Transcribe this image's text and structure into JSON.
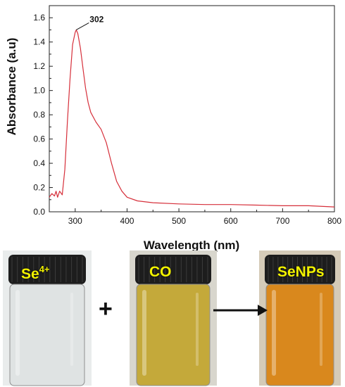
{
  "chart_data": {
    "type": "line",
    "xlabel": "Wavelength (nm)",
    "ylabel": "Absorbance (a.u)",
    "xlim": [
      250,
      800
    ],
    "ylim": [
      0,
      1.7
    ],
    "xticks": [
      300,
      400,
      500,
      600,
      700,
      800
    ],
    "yticks": [
      0.0,
      0.2,
      0.4,
      0.6,
      0.8,
      1.0,
      1.2,
      1.4,
      1.6
    ],
    "xtick_labels": [
      "300",
      "400",
      "500",
      "600",
      "700",
      "800"
    ],
    "ytick_labels": [
      "0.0",
      "0.2",
      "0.4",
      "0.6",
      "0.8",
      "1.0",
      "1.2",
      "1.4",
      "1.6"
    ],
    "grid": false,
    "series": [
      {
        "color": "#d62f3a",
        "x": [
          250,
          255,
          260,
          263,
          266,
          270,
          275,
          280,
          285,
          290,
          295,
          300,
          302,
          305,
          310,
          315,
          320,
          325,
          330,
          340,
          350,
          360,
          370,
          380,
          390,
          400,
          420,
          450,
          500,
          550,
          600,
          650,
          700,
          750,
          800
        ],
        "y": [
          0.12,
          0.15,
          0.13,
          0.17,
          0.12,
          0.17,
          0.14,
          0.35,
          0.75,
          1.1,
          1.38,
          1.48,
          1.5,
          1.47,
          1.35,
          1.18,
          1.02,
          0.9,
          0.82,
          0.74,
          0.68,
          0.57,
          0.4,
          0.25,
          0.17,
          0.12,
          0.09,
          0.075,
          0.065,
          0.06,
          0.06,
          0.055,
          0.05,
          0.05,
          0.04
        ]
      }
    ],
    "annotations": [
      {
        "text": "302",
        "x": 302,
        "y": 1.5
      }
    ]
  },
  "scheme": {
    "vials": [
      {
        "label": "Se",
        "superscript": "4+",
        "liquid_color": "#dfe3e3",
        "state": "clear"
      },
      {
        "label": "CO",
        "superscript": "",
        "liquid_color": "#c4a93a",
        "state": "yellow"
      },
      {
        "label": "SeNPs",
        "superscript": "",
        "liquid_color": "#d9881d",
        "state": "orange"
      }
    ],
    "plus_symbol": "+",
    "arrow_color": "#111111"
  }
}
